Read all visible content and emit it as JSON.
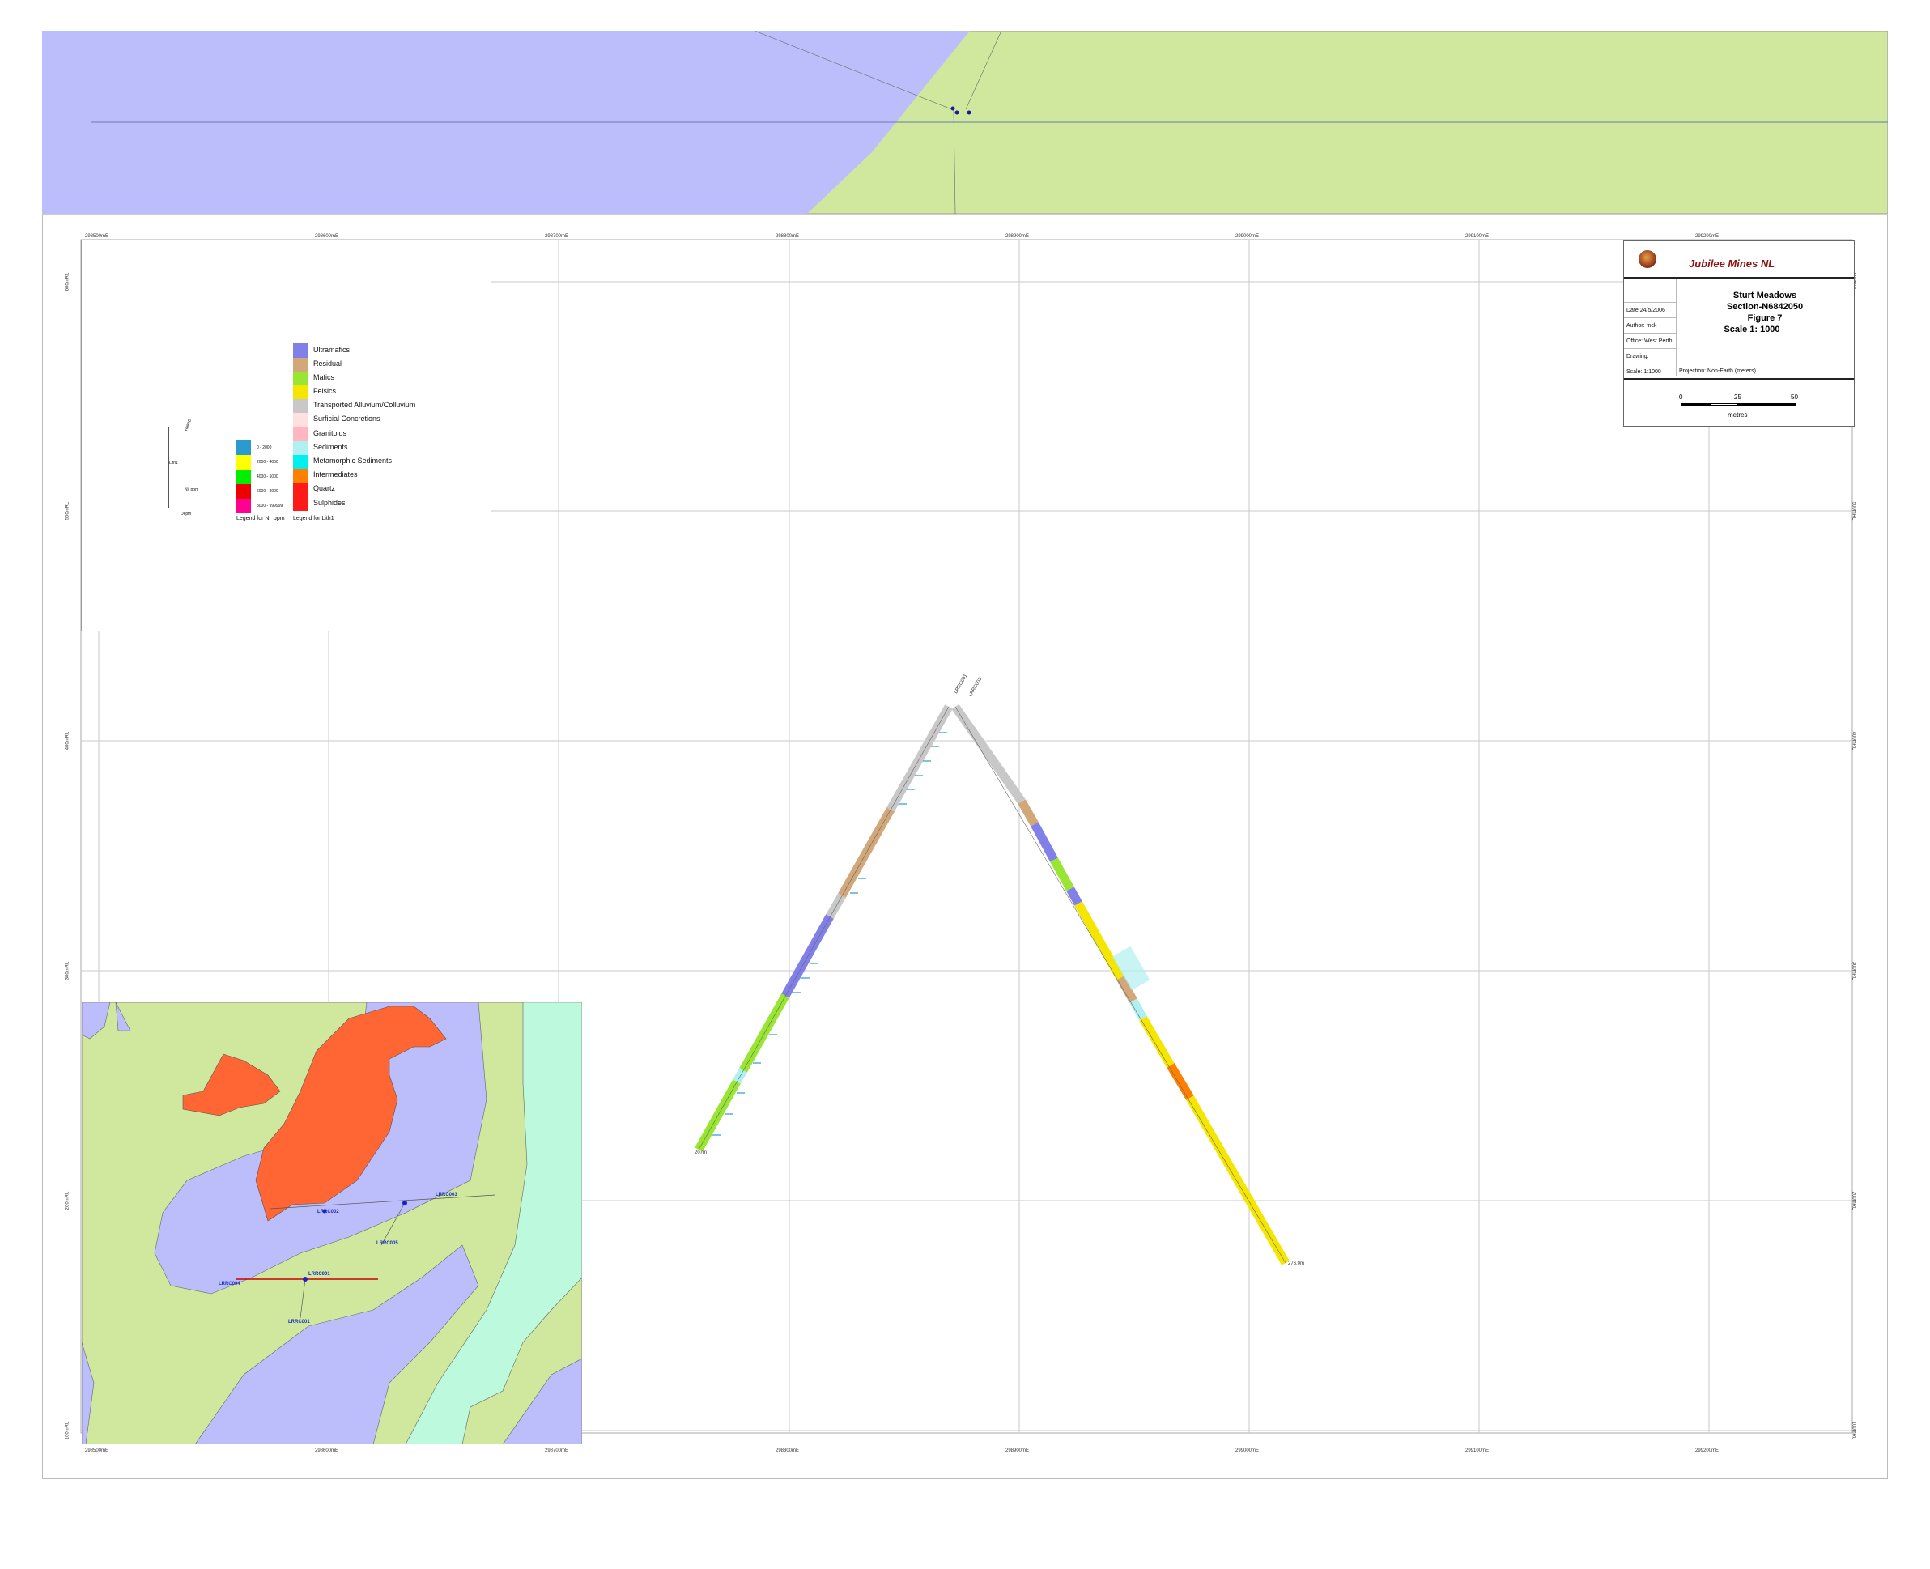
{
  "title_block": {
    "company": "Jubilee Mines NL",
    "project": "Sturt Meadows",
    "section": "Section-N6842050",
    "figure": "Figure 7",
    "scale_title": "Scale 1: 1000",
    "date": "Date:24/5/2006",
    "author": "Author: mck",
    "office": "Office: West Perth",
    "drawing": "Drawing:",
    "scale": "Scale: 1:1000",
    "projection": "Projection: Non-Earth (meters)",
    "scalebar_labels": [
      "0",
      "25",
      "50"
    ],
    "scalebar_unit": "metres"
  },
  "legend_lith": {
    "caption": "Legend for Lith1",
    "items": [
      {
        "label": "Ultramafics",
        "color": "#8080e8"
      },
      {
        "label": "Residual",
        "color": "#d2a87a"
      },
      {
        "label": "Mafics",
        "color": "#99e632"
      },
      {
        "label": "Felsics",
        "color": "#f4e600"
      },
      {
        "label": "Transported Alluvium/Colluvium",
        "color": "#c8c8c8"
      },
      {
        "label": "Surficial Concretions",
        "color": "#ffe0e0"
      },
      {
        "label": "Granitoids",
        "color": "#ffb6c1"
      },
      {
        "label": "Sediments",
        "color": "#b0f0f0"
      },
      {
        "label": "Metamorphic Sediments",
        "color": "#00f0f0"
      },
      {
        "label": "Intermediates",
        "color": "#ff7f00"
      },
      {
        "label": "Quartz",
        "color": "#ff1a1a"
      },
      {
        "label": "Sulphides",
        "color": "#ff1a1a"
      }
    ]
  },
  "legend_ni": {
    "caption": "Legend for Ni_ppm",
    "items": [
      {
        "label": "0 - 2000",
        "color": "#2a9ad0"
      },
      {
        "label": "2000 - 4000",
        "color": "#ffff00"
      },
      {
        "label": "4000 - 6000",
        "color": "#00ee00"
      },
      {
        "label": "6000 - 8000",
        "color": "#ee0000"
      },
      {
        "label": "8000 - 999999",
        "color": "#ff0090"
      }
    ]
  },
  "legend_key": {
    "hole": "HoleID",
    "lith": "Lith1",
    "ni": "Ni_ppm",
    "depth": "Depth"
  },
  "grid": {
    "easting_labels": [
      "298500mE",
      "298600mE",
      "298700mE",
      "298800mE",
      "298900mE",
      "299000mE",
      "299100mE",
      "299200mE"
    ],
    "rl_labels": [
      "600mRL",
      "500mRL",
      "400mRL",
      "300mRL",
      "200mRL",
      "100mRL"
    ]
  },
  "drillholes": [
    {
      "id": "LRRC001",
      "end_depth": "207m"
    },
    {
      "id": "LRRC003",
      "end_depth": "276.0m"
    }
  ],
  "inset_labels": [
    "LRRC003",
    "LRRC002",
    "LRRC005",
    "LRRC001",
    "LRRC004",
    "LRRC001"
  ],
  "colors": {
    "ultramafic_blue": "#bcbdfb",
    "mafic_green": "#cfe89d",
    "felsic_orange": "#ff6633",
    "sediment_cyan": "#bdf9dc"
  }
}
